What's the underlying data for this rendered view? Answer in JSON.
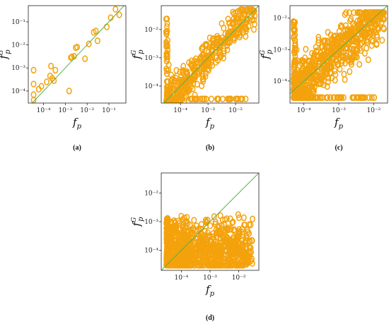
{
  "colors": {
    "marker": "#f4a20c",
    "fit_line": "#55b24a",
    "frame": "#222222"
  },
  "x_label_base": "f",
  "x_label_sub": "p",
  "y_label_base": "f",
  "y_label_sub": "p",
  "y_label_sup": "G",
  "chart_data": [
    {
      "id": "a",
      "caption": "(a)",
      "type": "scatter",
      "log_x": true,
      "log_y": true,
      "xlim": [
        2e-05,
        0.6
      ],
      "ylim": [
        3e-05,
        0.5
      ],
      "xticks": [
        {
          "v": 0.0001,
          "label": "10⁻⁴"
        },
        {
          "v": 0.001,
          "label": "10⁻³"
        },
        {
          "v": 0.01,
          "label": "10⁻²"
        },
        {
          "v": 0.1,
          "label": "10⁻¹"
        }
      ],
      "yticks": [
        {
          "v": 0.0001,
          "label": "10⁻⁴"
        },
        {
          "v": 0.001,
          "label": "10⁻³"
        },
        {
          "v": 0.01,
          "label": "10⁻²"
        },
        {
          "v": 0.1,
          "label": "10⁻¹"
        }
      ],
      "diagonal": true,
      "points": [
        [
          3.5e-05,
          7e-05
        ],
        [
          3.5e-05,
          4e-05
        ],
        [
          3.5e-05,
          0.0008
        ],
        [
          3.5e-05,
          0.0002
        ],
        [
          6e-05,
          0.00012
        ],
        [
          8e-05,
          0.00016
        ],
        [
          0.00014,
          0.00025
        ],
        [
          0.0002,
          0.00045
        ],
        [
          0.00022,
          0.0012
        ],
        [
          0.00025,
          0.00035
        ],
        [
          0.0003,
          0.00028
        ],
        [
          0.00035,
          0.0008
        ],
        [
          0.0015,
          0.0001
        ],
        [
          0.0018,
          0.0028
        ],
        [
          0.002,
          0.003
        ],
        [
          0.0025,
          0.0032
        ],
        [
          0.003,
          0.0075
        ],
        [
          0.0035,
          0.008
        ],
        [
          0.008,
          0.0025
        ],
        [
          0.012,
          0.011
        ],
        [
          0.02,
          0.035
        ],
        [
          0.025,
          0.04
        ],
        [
          0.03,
          0.015
        ],
        [
          0.08,
          0.06
        ],
        [
          0.12,
          0.15
        ],
        [
          0.2,
          0.35
        ],
        [
          0.3,
          0.2
        ]
      ]
    },
    {
      "id": "b",
      "caption": "(b)",
      "type": "scatter",
      "log_x": true,
      "log_y": true,
      "xlim": [
        2e-05,
        0.07
      ],
      "ylim": [
        2.5e-05,
        0.07
      ],
      "xticks": [
        {
          "v": 0.0001,
          "label": "10⁻⁴"
        },
        {
          "v": 0.001,
          "label": "10⁻³"
        },
        {
          "v": 0.01,
          "label": "10⁻²"
        }
      ],
      "yticks": [
        {
          "v": 0.0001,
          "label": "10⁻⁴"
        },
        {
          "v": 0.001,
          "label": "10⁻³"
        },
        {
          "v": 0.01,
          "label": "10⁻²"
        }
      ],
      "diagonal": true,
      "cloud": {
        "n": 420,
        "seed": 11,
        "xmin": 3e-05,
        "xmax": 0.05,
        "ymin": 3e-05,
        "ymax": 0.05,
        "spread": 0.55,
        "floor": 3.5e-05,
        "floor_n": 40
      }
    },
    {
      "id": "c",
      "caption": "(c)",
      "type": "scatter",
      "log_x": true,
      "log_y": true,
      "xlim": [
        4e-05,
        0.025
      ],
      "ylim": [
        2e-05,
        0.025
      ],
      "xticks": [
        {
          "v": 0.0001,
          "label": "10⁻⁴"
        },
        {
          "v": 0.001,
          "label": "10⁻³"
        },
        {
          "v": 0.01,
          "label": "10⁻²"
        }
      ],
      "yticks": [
        {
          "v": 0.0001,
          "label": "10⁻⁴"
        },
        {
          "v": 0.001,
          "label": "10⁻³"
        },
        {
          "v": 0.01,
          "label": "10⁻²"
        }
      ],
      "diagonal": true,
      "cloud": {
        "n": 700,
        "seed": 23,
        "xmin": 5e-05,
        "xmax": 0.02,
        "ymin": 3e-05,
        "ymax": 0.015,
        "spread": 0.7,
        "floor": 3e-05,
        "floor_n": 60
      }
    },
    {
      "id": "d",
      "caption": "(d)",
      "type": "scatter",
      "log_x": true,
      "log_y": true,
      "xlim": [
        2e-05,
        0.05
      ],
      "ylim": [
        2e-05,
        0.05
      ],
      "xticks": [
        {
          "v": 0.0001,
          "label": "10⁻⁴"
        },
        {
          "v": 0.001,
          "label": "10⁻³"
        },
        {
          "v": 0.01,
          "label": "10⁻²"
        }
      ],
      "yticks": [
        {
          "v": 0.0001,
          "label": "10⁻⁴"
        },
        {
          "v": 0.001,
          "label": "10⁻³"
        },
        {
          "v": 0.01,
          "label": "10⁻²"
        }
      ],
      "diagonal": true,
      "cloud": {
        "n": 800,
        "seed": 37,
        "xmin": 3e-05,
        "xmax": 0.03,
        "ymin": 3e-05,
        "ymax": 0.002,
        "spread": 1.2,
        "floor": 3e-05,
        "floor_n": 90
      }
    }
  ]
}
